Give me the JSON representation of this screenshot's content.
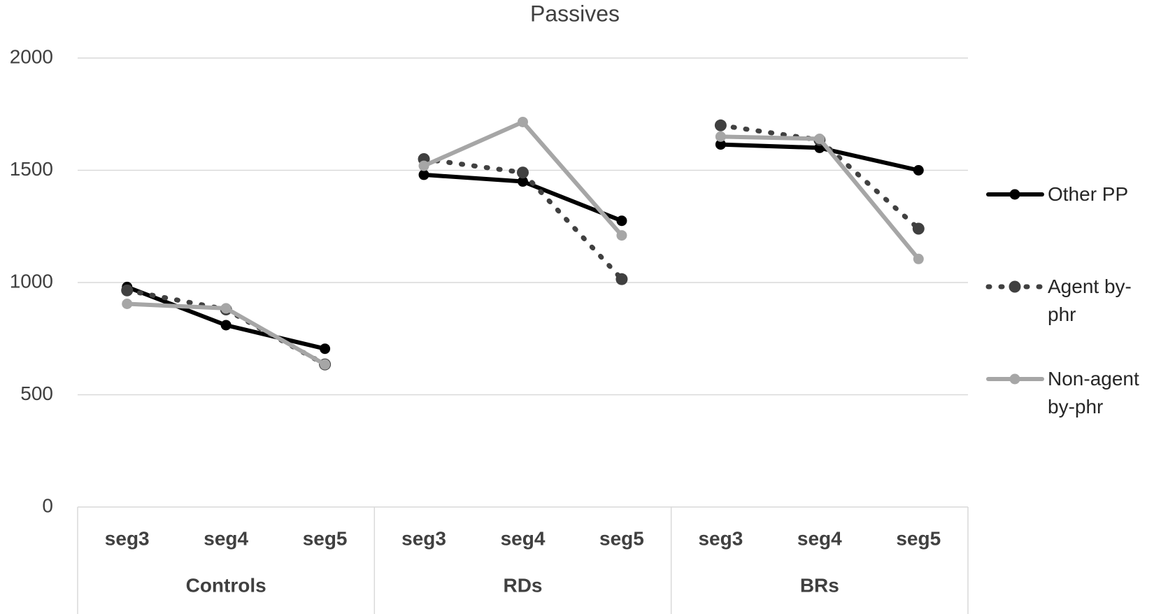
{
  "chart_data": {
    "type": "line",
    "title": "Passives",
    "groups": [
      "Controls",
      "RDs",
      "BRs"
    ],
    "categories": [
      "seg3",
      "seg4",
      "seg5",
      "seg3",
      "seg4",
      "seg5",
      "seg3",
      "seg4",
      "seg5"
    ],
    "series": [
      {
        "name": "Other PP",
        "color": "#000000",
        "dash": "solid",
        "values": [
          980,
          810,
          705,
          1480,
          1450,
          1275,
          1615,
          1600,
          1500
        ]
      },
      {
        "name": "Agent by-phr",
        "color": "#404040",
        "dash": "dotted",
        "values": [
          965,
          880,
          635,
          1550,
          1490,
          1015,
          1700,
          1635,
          1240
        ]
      },
      {
        "name": "Non-agent by-phr",
        "color": "#a6a6a6",
        "dash": "solid",
        "values": [
          905,
          885,
          635,
          1520,
          1715,
          1210,
          1650,
          1640,
          1105
        ]
      }
    ],
    "ylim": [
      0,
      2000
    ],
    "yticks": [
      0,
      500,
      1000,
      1500,
      2000
    ],
    "grid": true,
    "legend": "right"
  }
}
